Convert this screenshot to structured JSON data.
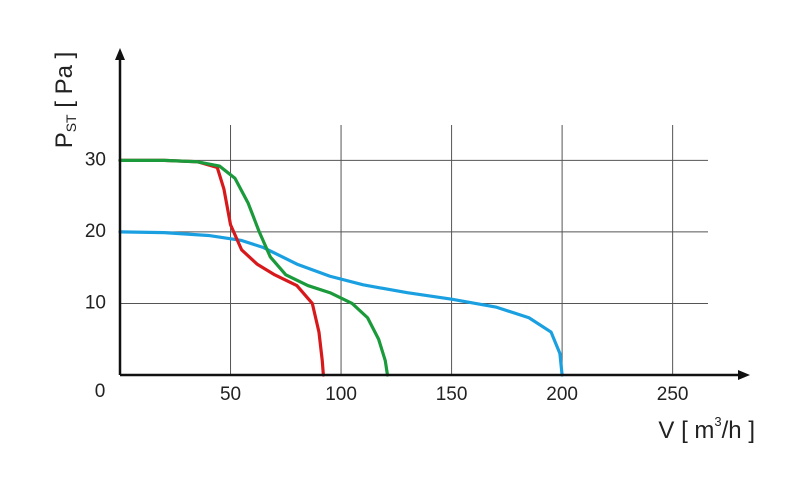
{
  "chart_data": {
    "type": "line",
    "y_label": [
      "P",
      "ST",
      " [ Pa ]"
    ],
    "x_label": [
      "V [ m",
      "3",
      "/h ]"
    ],
    "xlim": [
      0,
      285
    ],
    "ylim": [
      0,
      45.7
    ],
    "xticks": [
      0,
      50,
      100,
      150,
      200,
      250
    ],
    "yticks": [
      10,
      20,
      30
    ],
    "grid": true,
    "series": [
      {
        "color": "#1aa0e0",
        "x": [
          0,
          20,
          40,
          55,
          65,
          80,
          95,
          110,
          130,
          150,
          170,
          185,
          195,
          199,
          200
        ],
        "values": [
          20,
          19.9,
          19.5,
          18.8,
          17.8,
          15.5,
          13.8,
          12.6,
          11.5,
          10.6,
          9.5,
          8,
          6,
          3,
          0
        ]
      },
      {
        "color": "#d7191c",
        "x": [
          0,
          20,
          35,
          44,
          47,
          50,
          55,
          62,
          70,
          80,
          87,
          90,
          91.5,
          92
        ],
        "values": [
          30,
          30,
          29.8,
          29,
          26,
          21,
          17.5,
          15.5,
          14,
          12.5,
          10,
          6,
          2,
          0
        ]
      },
      {
        "color": "#1a9a3a",
        "x": [
          0,
          20,
          35,
          45,
          52,
          58,
          63,
          68,
          75,
          85,
          95,
          105,
          112,
          117,
          120,
          121
        ],
        "values": [
          30,
          30,
          29.8,
          29.2,
          27.5,
          24,
          20,
          16.5,
          14,
          12.5,
          11.5,
          10,
          8,
          5,
          2,
          0
        ]
      }
    ]
  }
}
